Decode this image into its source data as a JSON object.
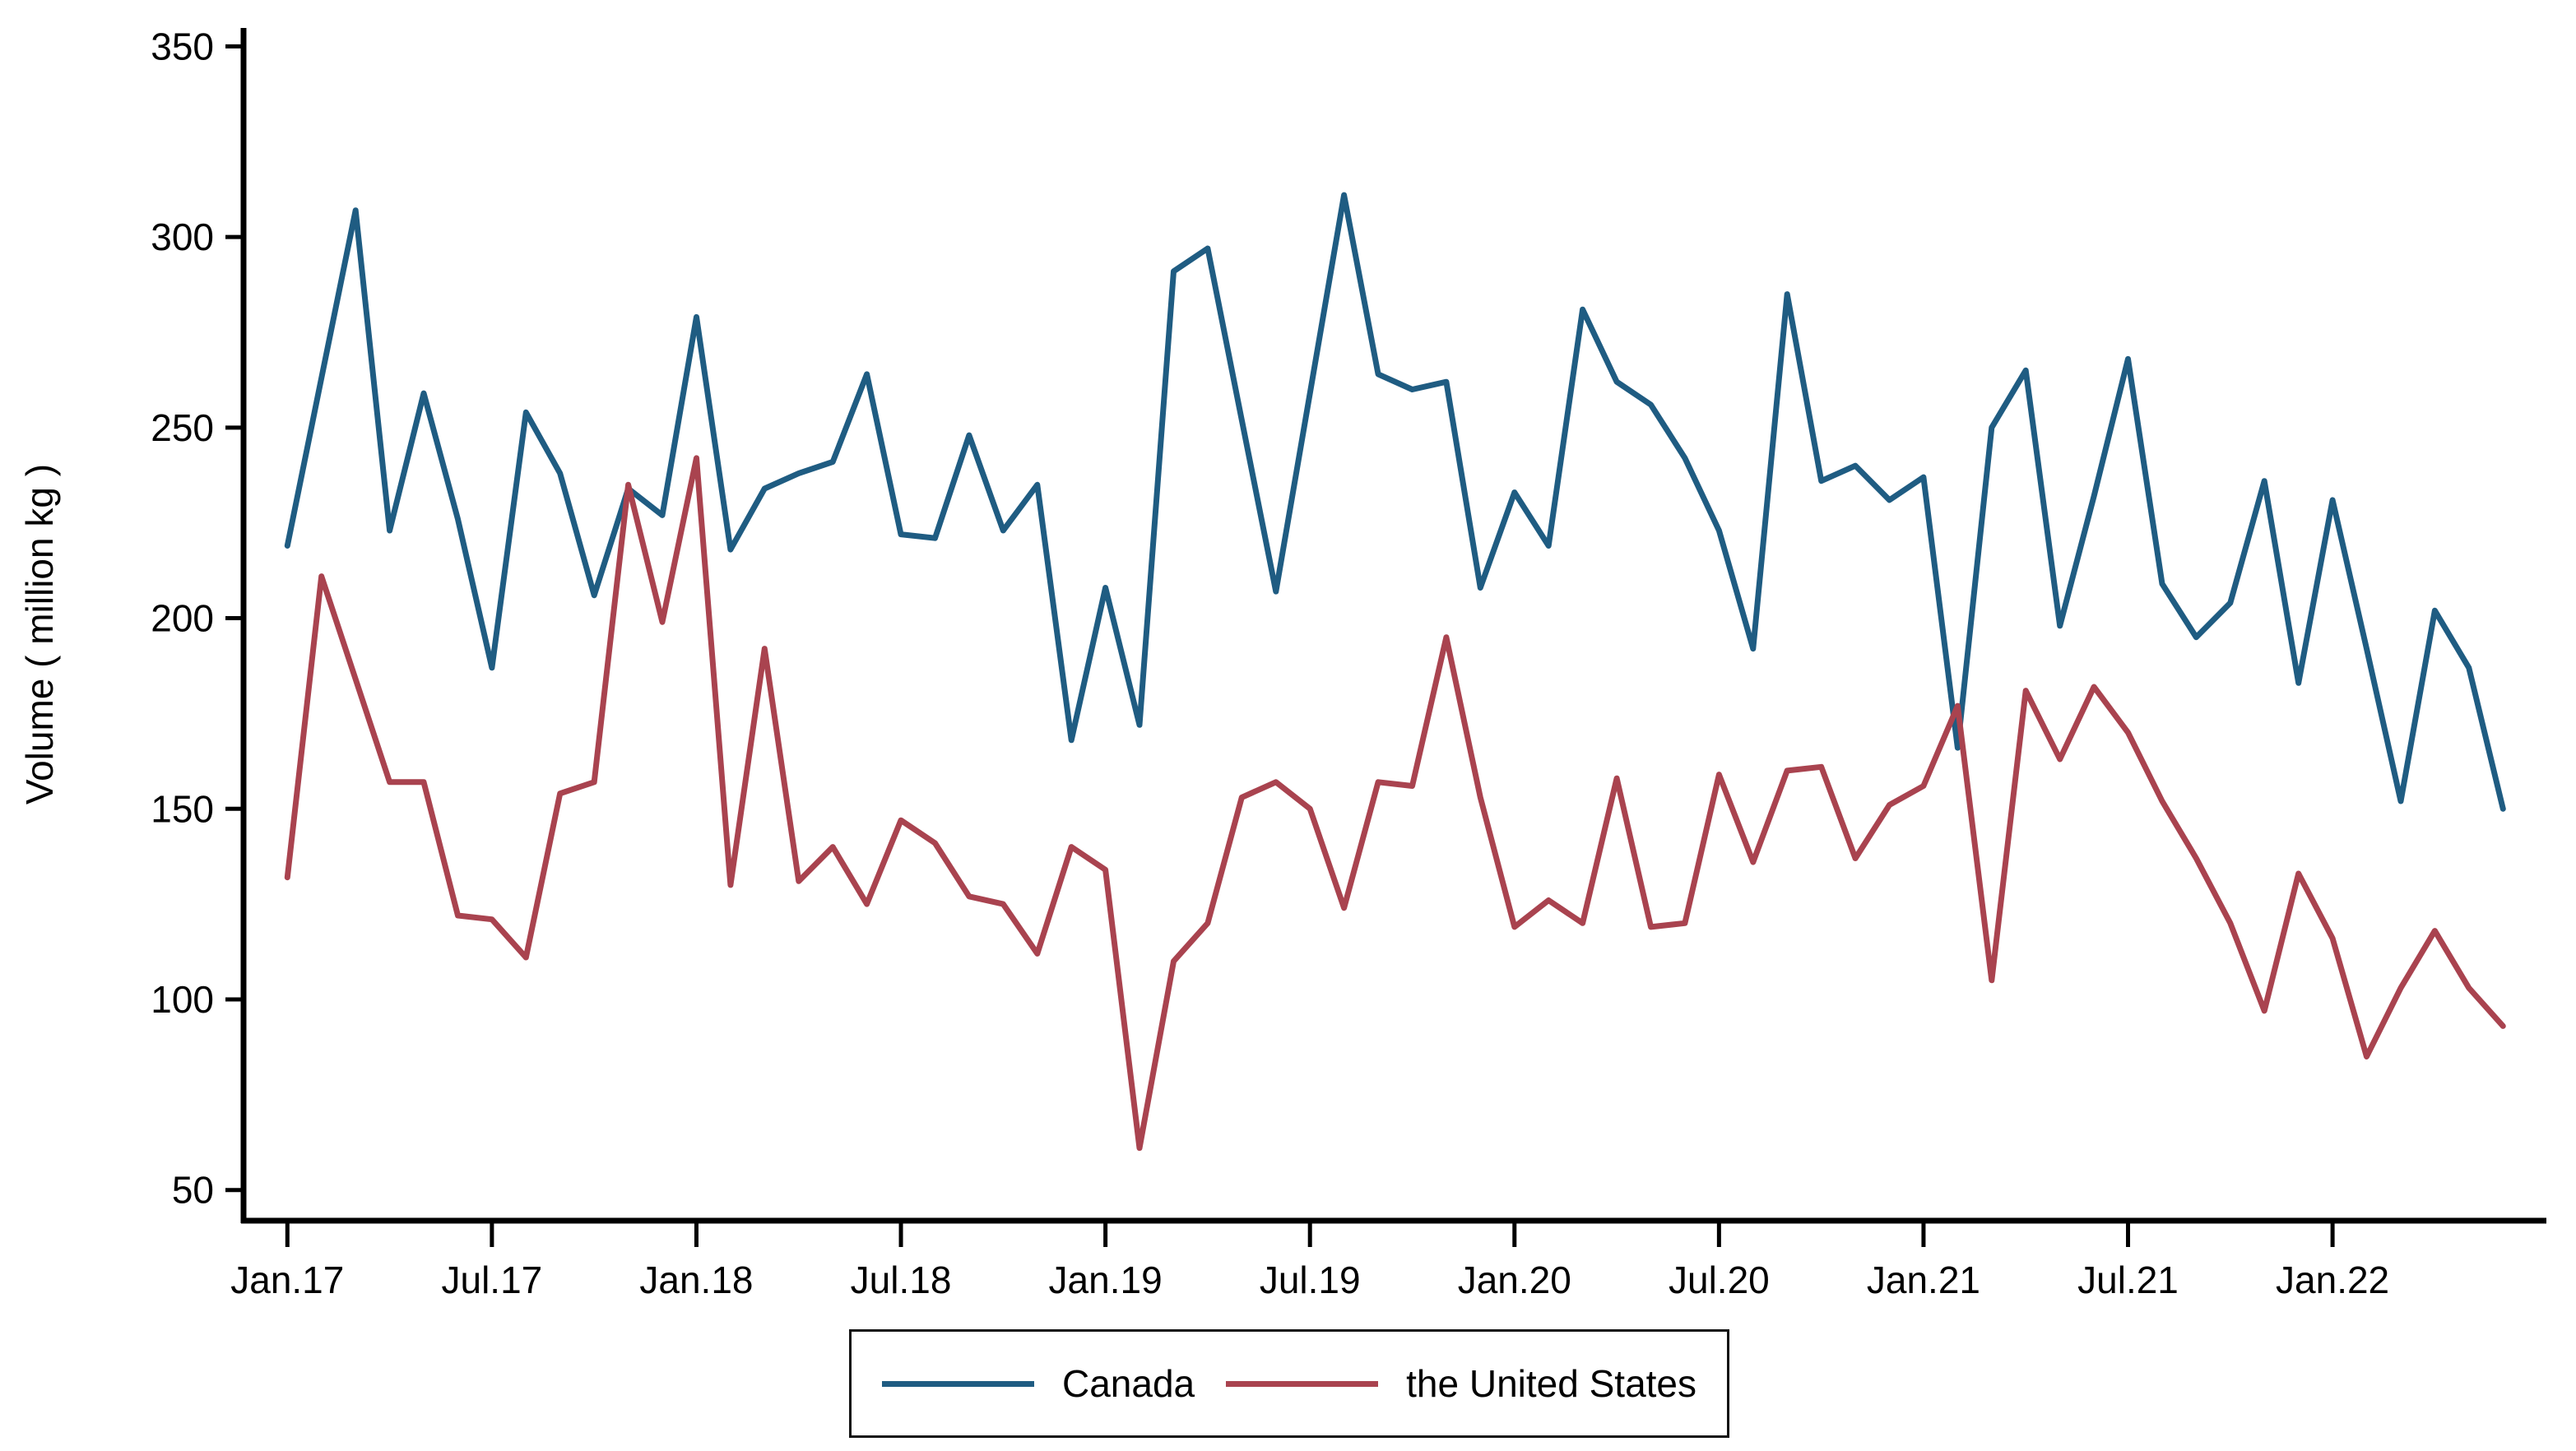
{
  "chart_data": {
    "type": "line",
    "title": "",
    "xlabel": "",
    "ylabel": "Volume ( million kg )",
    "ylim": [
      50,
      350
    ],
    "y_ticks": [
      50,
      100,
      150,
      200,
      250,
      300,
      350
    ],
    "x_tick_labels": [
      "Jan.17",
      "Jul.17",
      "Jan.18",
      "Jul.18",
      "Jan.19",
      "Jul.19",
      "Jan.20",
      "Jul.20",
      "Jan.21",
      "Jul.21",
      "Jan.22"
    ],
    "x_tick_month_indices": [
      0,
      6,
      12,
      18,
      24,
      30,
      36,
      42,
      48,
      54,
      60
    ],
    "grid": false,
    "legend_position": "bottom-center",
    "categories": [
      "Jan.17",
      "Feb.17",
      "Mar.17",
      "Apr.17",
      "May.17",
      "Jun.17",
      "Jul.17",
      "Aug.17",
      "Sep.17",
      "Oct.17",
      "Nov.17",
      "Dec.17",
      "Jan.18",
      "Feb.18",
      "Mar.18",
      "Apr.18",
      "May.18",
      "Jun.18",
      "Jul.18",
      "Aug.18",
      "Sep.18",
      "Oct.18",
      "Nov.18",
      "Dec.18",
      "Jan.19",
      "Feb.19",
      "Mar.19",
      "Apr.19",
      "May.19",
      "Jun.19",
      "Jul.19",
      "Aug.19",
      "Sep.19",
      "Oct.19",
      "Nov.19",
      "Dec.19",
      "Jan.20",
      "Feb.20",
      "Mar.20",
      "Apr.20",
      "May.20",
      "Jun.20",
      "Jul.20",
      "Aug.20",
      "Sep.20",
      "Oct.20",
      "Nov.20",
      "Dec.20",
      "Jan.21",
      "Feb.21",
      "Mar.21",
      "Apr.21",
      "May.21",
      "Jun.21",
      "Jul.21",
      "Aug.21",
      "Sep.21",
      "Oct.21",
      "Nov.21",
      "Dec.21",
      "Jan.22",
      "Feb.22",
      "Mar.22",
      "Apr.22",
      "May.22",
      "Jun.22"
    ],
    "series": [
      {
        "name": "Canada",
        "color": "#1f5c82",
        "values": [
          219,
          263,
          307,
          223,
          259,
          226,
          187,
          254,
          238,
          206,
          234,
          227,
          279,
          218,
          234,
          238,
          241,
          264,
          222,
          221,
          248,
          223,
          235,
          168,
          208,
          172,
          291,
          297,
          252,
          207,
          259,
          311,
          264,
          260,
          262,
          208,
          233,
          219,
          281,
          262,
          256,
          242,
          223,
          192,
          285,
          236,
          240,
          231,
          237,
          166,
          250,
          265,
          198,
          232,
          268,
          209,
          195,
          204,
          236,
          183,
          231,
          192,
          152,
          202,
          187,
          150
        ]
      },
      {
        "name": "the United States",
        "color": "#a9434f",
        "values": [
          132,
          211,
          184,
          157,
          157,
          122,
          121,
          111,
          154,
          157,
          235,
          199,
          242,
          130,
          192,
          131,
          140,
          125,
          147,
          141,
          127,
          125,
          112,
          140,
          134,
          61,
          110,
          120,
          153,
          157,
          150,
          124,
          157,
          156,
          195,
          153,
          119,
          126,
          120,
          158,
          119,
          120,
          159,
          136,
          160,
          161,
          137,
          151,
          156,
          177,
          105,
          181,
          163,
          182,
          170,
          152,
          137,
          120,
          97,
          133,
          116,
          85,
          103,
          118,
          103,
          93
        ]
      }
    ]
  },
  "layout_colors": {
    "axis": "#000000",
    "background": "#ffffff"
  },
  "legend": {
    "canada_label": "Canada",
    "us_label": "the United States"
  },
  "y_axis_title": "Volume ( million kg )"
}
